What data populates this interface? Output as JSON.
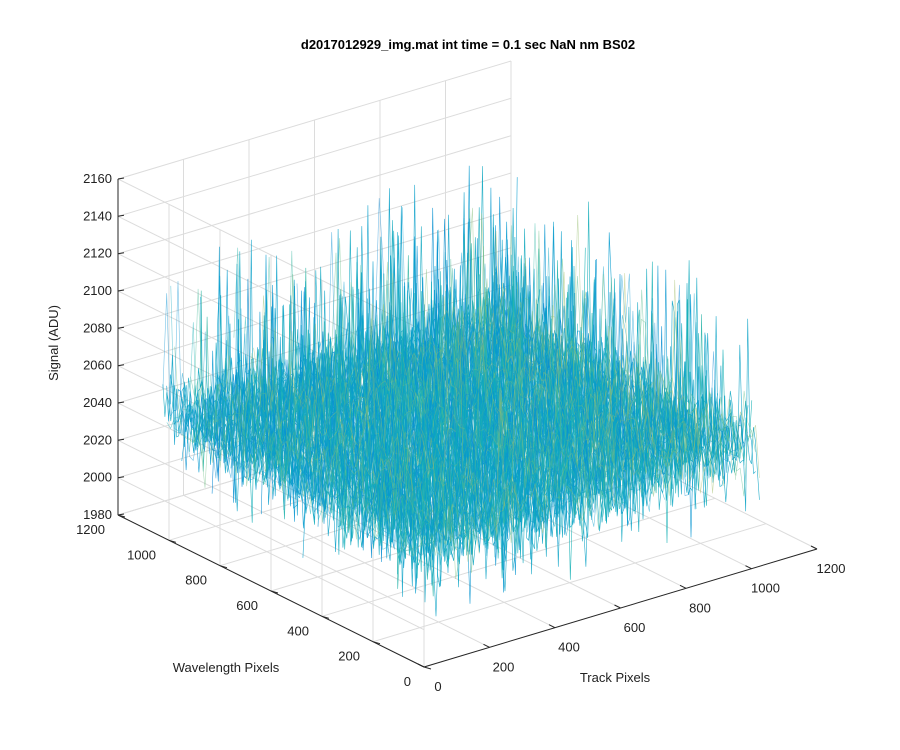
{
  "chart_data": {
    "type": "surface3d",
    "title": "d2017012929_img.mat int time = 0.1 sec  NaN nm BS02",
    "xlabel": "Track Pixels",
    "ylabel": "Wavelength Pixels",
    "zlabel": "Signal (ADU)",
    "xlim": [
      0,
      1200
    ],
    "ylim": [
      0,
      1200
    ],
    "zlim": [
      1980,
      2160
    ],
    "xticks": [
      "0",
      "200",
      "400",
      "600",
      "800",
      "1000",
      "1200"
    ],
    "yticks": [
      "0",
      "200",
      "400",
      "600",
      "800",
      "1000",
      "1200"
    ],
    "zticks": [
      "1980",
      "2000",
      "2020",
      "2040",
      "2060",
      "2080",
      "2100",
      "2120",
      "2140",
      "2160"
    ],
    "grid": true,
    "colormap": "parula",
    "surface": {
      "baseline": 2045,
      "noise_range": [
        2000,
        2150
      ],
      "data_extent": [
        0,
        1024
      ]
    }
  }
}
